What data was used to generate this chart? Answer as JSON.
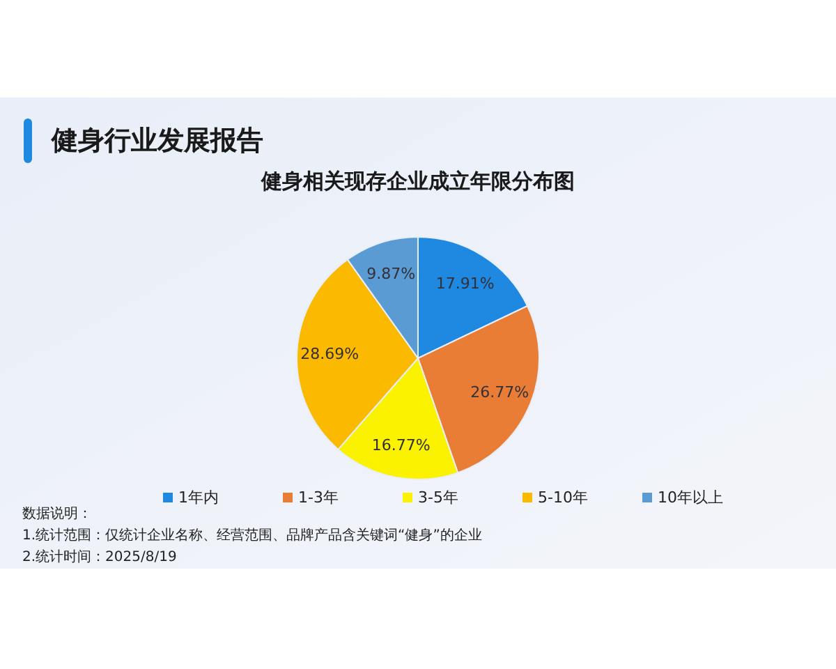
{
  "chart_data": {
    "type": "pie",
    "title": "健身行业发展报告",
    "subtitle": "健身相关现存企业成立年限分布图",
    "categories": [
      "1年内",
      "1-3年",
      "3-5年",
      "5-10年",
      "10年以上"
    ],
    "values": [
      17.91,
      26.77,
      16.77,
      28.69,
      9.87
    ],
    "colors": [
      "#1f88e0",
      "#e97d35",
      "#fbf200",
      "#fbb900",
      "#5a9bd4"
    ],
    "value_labels": [
      "17.91%",
      "26.77%",
      "16.77%",
      "28.69%",
      "9.87%"
    ],
    "legend": "bottom",
    "annotations": [
      "数据说明：",
      "1.统计范围：仅统计企业名称、经营范围、品牌产品含关键词“健身”的企业",
      "2.统计时间：2025/8/19"
    ]
  }
}
